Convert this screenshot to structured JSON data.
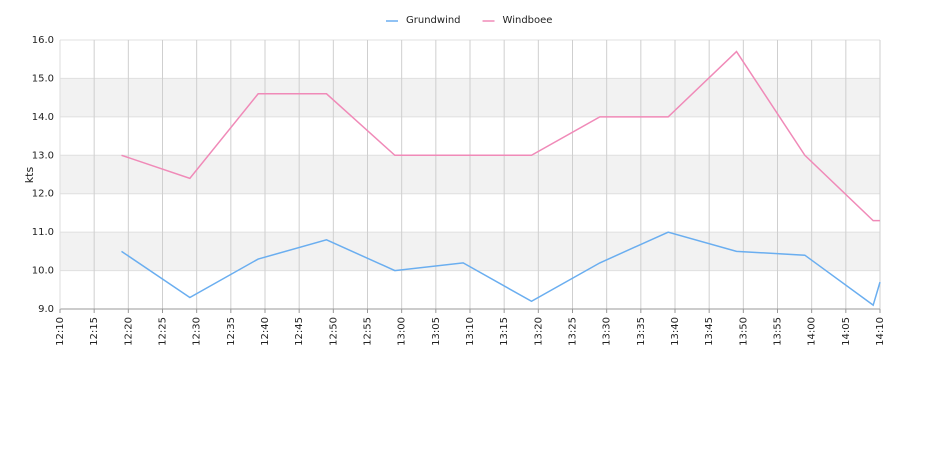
{
  "chart_data": {
    "type": "line",
    "y_label": "kts",
    "x": [
      "12:19",
      "12:29",
      "12:39",
      "12:49",
      "12:59",
      "13:09",
      "13:19",
      "13:29",
      "13:39",
      "13:49",
      "13:59",
      "14:09",
      "14:10"
    ],
    "series": [
      {
        "name": "Grundwind",
        "color": "#6aaef0",
        "values": [
          10.5,
          9.3,
          10.3,
          10.8,
          10.0,
          10.2,
          9.2,
          10.2,
          11.0,
          10.5,
          10.4,
          9.1,
          9.7
        ]
      },
      {
        "name": "Windboee",
        "color": "#f08ab8",
        "values": [
          13.0,
          12.4,
          14.6,
          14.6,
          13.0,
          13.0,
          13.0,
          14.0,
          14.0,
          15.7,
          13.0,
          11.3,
          11.3
        ]
      }
    ],
    "xlim": [
      "12:10",
      "14:10"
    ],
    "xticks": [
      "12:10",
      "12:15",
      "12:20",
      "12:25",
      "12:30",
      "12:35",
      "12:40",
      "12:45",
      "12:50",
      "12:55",
      "13:00",
      "13:05",
      "13:10",
      "13:15",
      "13:20",
      "13:25",
      "13:30",
      "13:35",
      "13:40",
      "13:45",
      "13:50",
      "13:55",
      "14:00",
      "14:05",
      "14:10"
    ],
    "ylim": [
      9,
      16
    ],
    "yticks": [
      {
        "value": 9,
        "label": "9.0"
      },
      {
        "value": 10,
        "label": "10.0"
      },
      {
        "value": 11,
        "label": "11.0"
      },
      {
        "value": 12,
        "label": "12.0"
      },
      {
        "value": 13,
        "label": "13.0"
      },
      {
        "value": 14,
        "label": "14.0"
      },
      {
        "value": 15,
        "label": "15.0"
      },
      {
        "value": 16,
        "label": "16.0"
      }
    ],
    "grid": true,
    "band_color": "#f2f2f2",
    "legend": "top"
  }
}
